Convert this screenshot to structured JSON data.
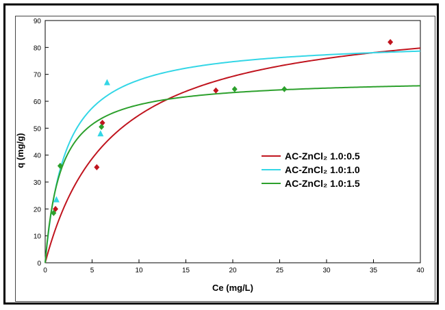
{
  "chart_data": {
    "type": "scatter",
    "xlabel": "Ce (mg/L)",
    "ylabel": "q (mg/g)",
    "xlim": [
      0,
      40
    ],
    "ylim": [
      0,
      90
    ],
    "xticks": [
      0,
      5,
      10,
      15,
      20,
      25,
      30,
      35,
      40
    ],
    "yticks": [
      0,
      10,
      20,
      30,
      40,
      50,
      60,
      70,
      80,
      90
    ],
    "grid": false,
    "legend_position": "right",
    "series": [
      {
        "name": "AC-ZnCl₂ 1.0:0.5",
        "color": "#c0141e",
        "marker": "diamond",
        "points": [
          [
            1.1,
            20
          ],
          [
            5.5,
            35.5
          ],
          [
            6.1,
            52
          ],
          [
            18.2,
            64
          ],
          [
            36.8,
            82
          ]
        ],
        "fit": {
          "model": "langmuir",
          "qmax": 94,
          "K": 0.14
        }
      },
      {
        "name": "AC-ZnCl₂ 1.0:1.0",
        "color": "#33d6e6",
        "marker": "triangle",
        "points": [
          [
            1.2,
            23.5
          ],
          [
            5.9,
            48
          ],
          [
            6.6,
            67
          ]
        ],
        "fit": {
          "model": "langmuir",
          "qmax": 83,
          "K": 0.45
        }
      },
      {
        "name": "AC-ZnCl₂ 1.0:1.5",
        "color": "#2ca02c",
        "marker": "diamond",
        "points": [
          [
            0.9,
            18.5
          ],
          [
            1.6,
            36
          ],
          [
            6.0,
            50.5
          ],
          [
            20.2,
            64.5
          ],
          [
            25.5,
            64.5
          ]
        ],
        "fit": {
          "model": "langmuir",
          "qmax": 68.5,
          "K": 0.6
        }
      }
    ]
  }
}
